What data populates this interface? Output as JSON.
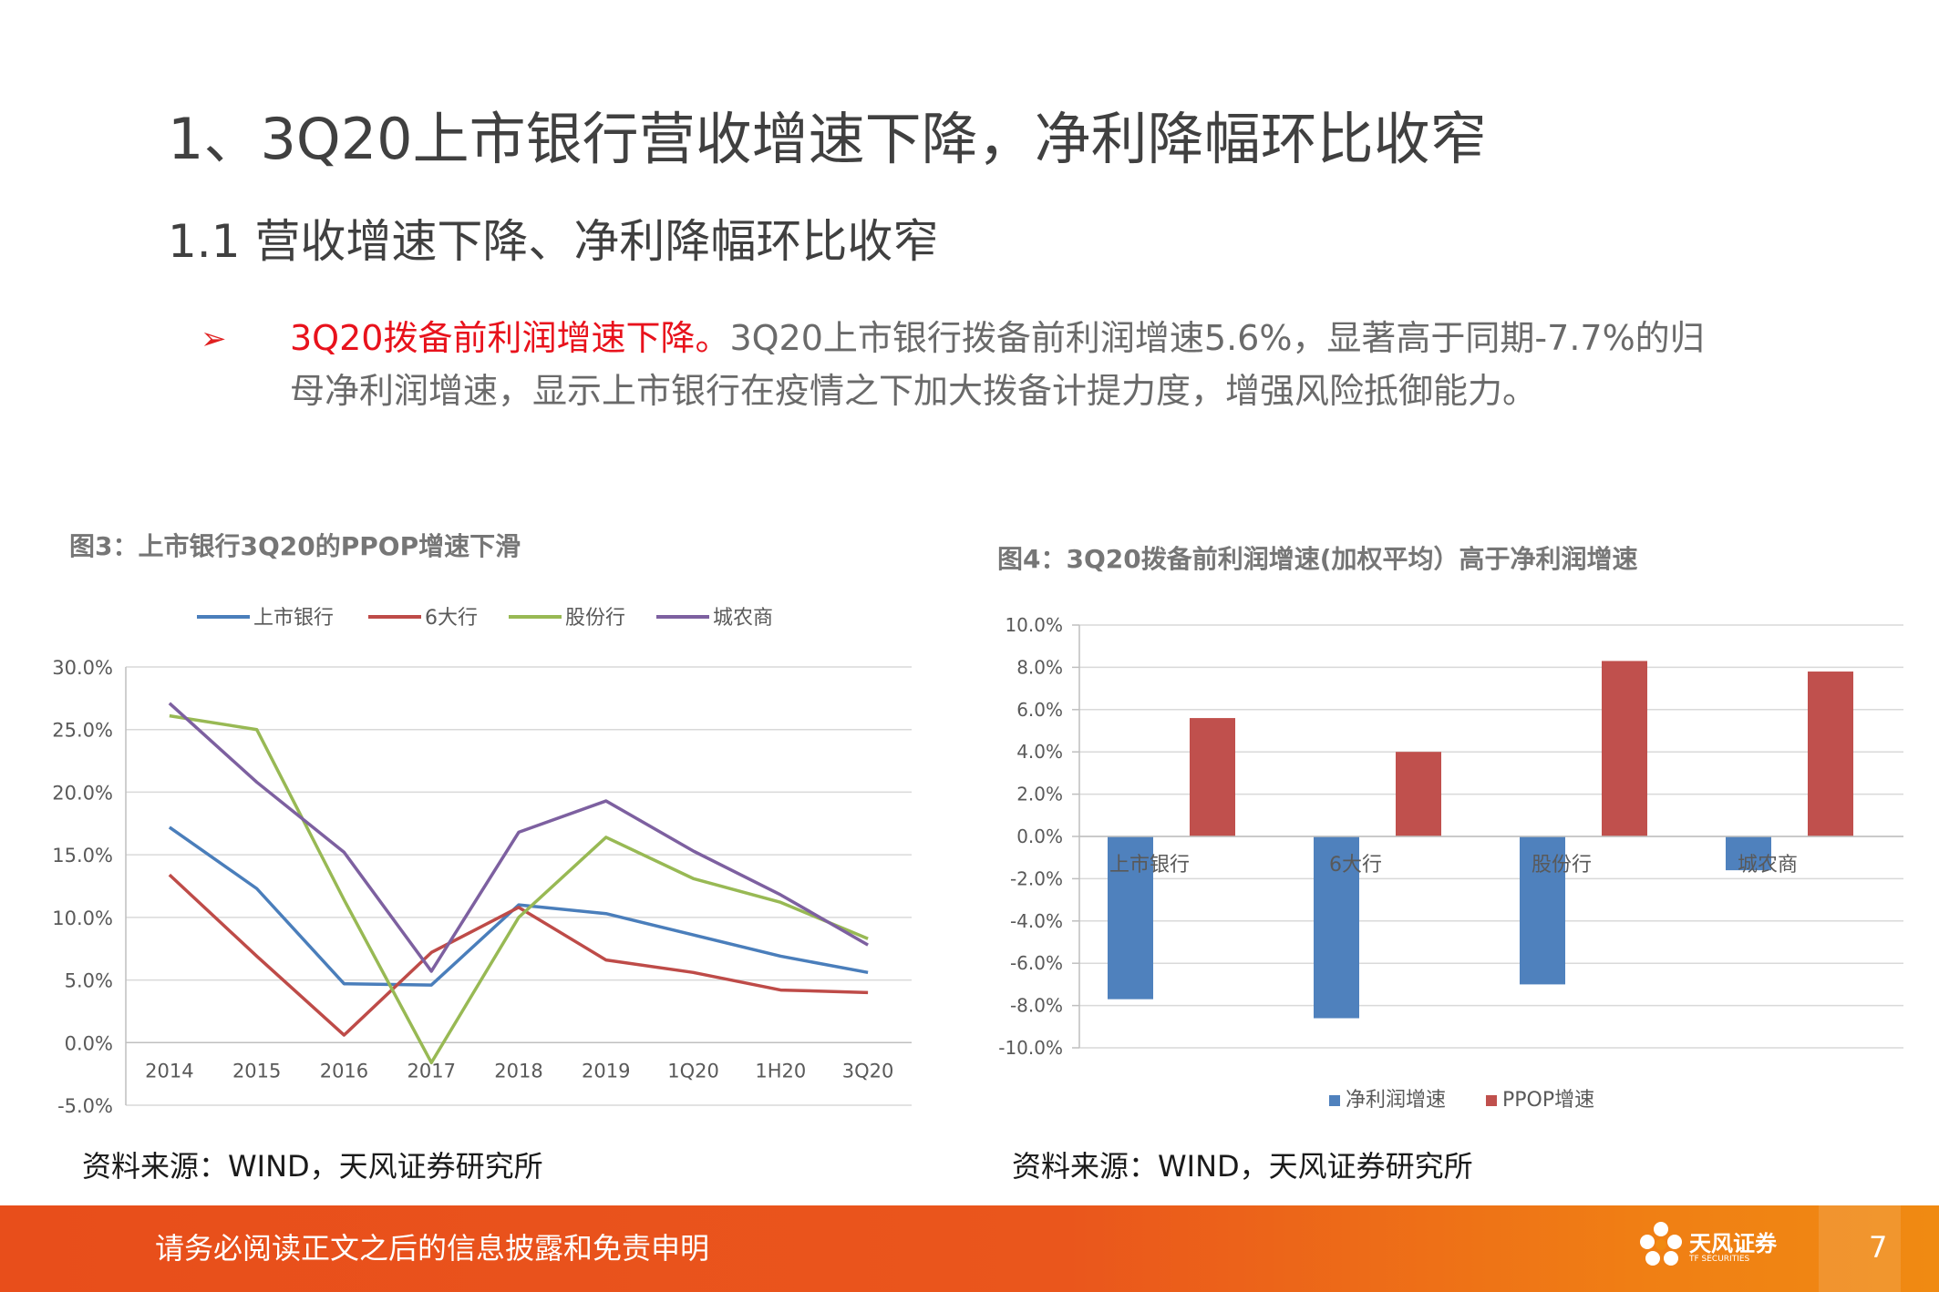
{
  "header": {
    "title": "1、3Q20上市银行营收增速下降，净利降幅环比收窄",
    "subtitle": "1.1 营收增速下降、净利降幅环比收窄"
  },
  "bullet": {
    "marker": "➢",
    "highlight": "3Q20拨备前利润增速下降。",
    "text": "3Q20上市银行拨备前利润增速5.6%，显著高于同期-7.7%的归母净利润增速，显示上市银行在疫情之下加大拨备计提力度，增强风险抵御能力。"
  },
  "footer": {
    "disclaimer": "请务必阅读正文之后的信息披露和免责申明",
    "logo_text": "天风证券",
    "logo_sub": "TF SECURITIES",
    "page": "7"
  },
  "colors": {
    "title": "#404040",
    "highlight": "#e8121c",
    "footer": "#e84e1b"
  },
  "chart_data": [
    {
      "type": "line",
      "title": "图3：上市银行3Q20的PPOP增速下滑",
      "source": "资料来源：WIND，天风证券研究所",
      "categories": [
        "2014",
        "2015",
        "2016",
        "2017",
        "2018",
        "2019",
        "1Q20",
        "1H20",
        "3Q20"
      ],
      "y_ticks": [
        "30.0%",
        "25.0%",
        "20.0%",
        "15.0%",
        "10.0%",
        "5.0%",
        "0.0%",
        "-5.0%"
      ],
      "ylim": [
        -5,
        30
      ],
      "legend_position": "top",
      "grid": true,
      "series": [
        {
          "name": "上市银行",
          "color": "#4a7ebb",
          "values": [
            17.2,
            12.3,
            4.7,
            4.6,
            11.0,
            10.3,
            8.6,
            6.9,
            5.6
          ]
        },
        {
          "name": "6大行",
          "color": "#be4b48",
          "values": [
            13.4,
            6.9,
            0.6,
            7.2,
            10.8,
            6.6,
            5.6,
            4.2,
            4.0
          ]
        },
        {
          "name": "股份行",
          "color": "#98b954",
          "values": [
            26.1,
            25.0,
            11.4,
            -1.6,
            10.0,
            16.4,
            13.1,
            11.2,
            8.3
          ]
        },
        {
          "name": "城农商",
          "color": "#7d60a0",
          "values": [
            27.1,
            20.8,
            15.2,
            5.7,
            16.8,
            19.3,
            15.3,
            11.8,
            7.8
          ]
        }
      ]
    },
    {
      "type": "bar",
      "title": "图4：3Q20拨备前利润增速(加权平均）高于净利润增速",
      "source": "资料来源：WIND，天风证券研究所",
      "categories": [
        "上市银行",
        "6大行",
        "股份行",
        "城农商"
      ],
      "y_ticks": [
        "10.0%",
        "8.0%",
        "6.0%",
        "4.0%",
        "2.0%",
        "0.0%",
        "-2.0%",
        "-4.0%",
        "-6.0%",
        "-8.0%",
        "-10.0%"
      ],
      "ylim": [
        -10,
        10
      ],
      "legend_position": "bottom",
      "grid": true,
      "series": [
        {
          "name": "净利润增速",
          "color": "#4f81bd",
          "values": [
            -7.7,
            -8.6,
            -7.0,
            -1.6
          ]
        },
        {
          "name": "PPOP增速",
          "color": "#c0504d",
          "values": [
            5.6,
            4.0,
            8.3,
            7.8
          ]
        }
      ]
    }
  ]
}
